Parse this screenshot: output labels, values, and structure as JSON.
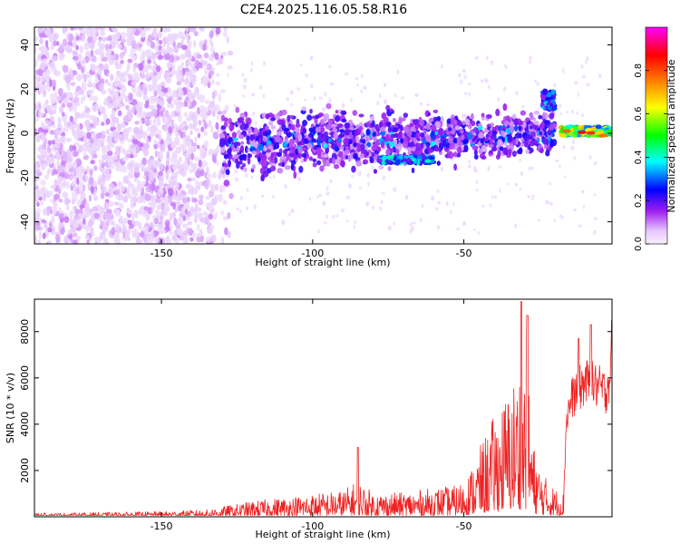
{
  "title": "C2E4.2025.116.05.58.R16",
  "chart_data": [
    {
      "type": "heatmap",
      "xlabel": "Height of straight line (km)",
      "ylabel": "Frequency (Hz)",
      "xlim": [
        -192,
        -1
      ],
      "ylim": [
        -50,
        48
      ],
      "x_ticks": [
        "-150",
        "-100",
        "-50"
      ],
      "y_ticks": [
        "-40",
        "-20",
        "0",
        "20",
        "40"
      ],
      "colorbar": {
        "label": "Normalized spectral amplitude",
        "range": [
          0,
          1
        ],
        "ticks": [
          "0.0",
          "0.2",
          "0.4",
          "0.6",
          "0.8"
        ],
        "colors": [
          "#f4ecf8",
          "#e6c8ff",
          "#a020f0",
          "#0000ff",
          "#00ffff",
          "#00ff00",
          "#ffff00",
          "#ff8000",
          "#ff0000",
          "#ff00ff"
        ]
      },
      "features": [
        {
          "x_range": [
            -192,
            -130
          ],
          "freq_range": [
            -50,
            48
          ],
          "amplitude": 0.15,
          "description_free": true
        },
        {
          "x_range": [
            -130,
            -20
          ],
          "freq_center_start": -5,
          "freq_center_end": 0,
          "amplitude": 0.35
        },
        {
          "x_range": [
            -78,
            -60
          ],
          "freq_center": -12,
          "amplitude": 0.5
        },
        {
          "x_range": [
            -24,
            -20
          ],
          "freq_center": 15,
          "amplitude": 0.4
        },
        {
          "x_range": [
            -18,
            -1
          ],
          "freq_center": 0,
          "amplitude": 0.85
        }
      ]
    },
    {
      "type": "line",
      "xlabel": "Height of straight line (km)",
      "ylabel": "SNR (10 * v/v)",
      "xlim": [
        -192,
        -1
      ],
      "ylim": [
        0,
        9400
      ],
      "x_ticks": [
        "-150",
        "-100",
        "-50"
      ],
      "y_ticks": [
        "2000",
        "4000",
        "6000",
        "8000"
      ],
      "series_color": "#ee2222",
      "envelope": [
        {
          "x": -192,
          "y": 150
        },
        {
          "x": -170,
          "y": 180
        },
        {
          "x": -150,
          "y": 220
        },
        {
          "x": -135,
          "y": 300
        },
        {
          "x": -120,
          "y": 650
        },
        {
          "x": -110,
          "y": 800
        },
        {
          "x": -100,
          "y": 950
        },
        {
          "x": -90,
          "y": 1100
        },
        {
          "x": -85,
          "y": 1500
        },
        {
          "x": -80,
          "y": 1000
        },
        {
          "x": -70,
          "y": 1000
        },
        {
          "x": -60,
          "y": 1200
        },
        {
          "x": -52,
          "y": 1300
        },
        {
          "x": -48,
          "y": 1900
        },
        {
          "x": -45,
          "y": 2800
        },
        {
          "x": -40,
          "y": 4200
        },
        {
          "x": -35,
          "y": 5300
        },
        {
          "x": -31,
          "y": 6500
        },
        {
          "x": -29,
          "y": 6800
        },
        {
          "x": -27,
          "y": 3000
        },
        {
          "x": -24,
          "y": 1800
        },
        {
          "x": -20,
          "y": 1200
        },
        {
          "x": -17,
          "y": 1000
        },
        {
          "x": -16,
          "y": 4300
        },
        {
          "x": -14,
          "y": 5200
        },
        {
          "x": -10,
          "y": 5800
        },
        {
          "x": -7,
          "y": 5700
        },
        {
          "x": -3,
          "y": 5400
        },
        {
          "x": -1,
          "y": 6500
        }
      ],
      "peaks": [
        {
          "x": -31,
          "y": 9300
        },
        {
          "x": -29,
          "y": 8700
        },
        {
          "x": -85,
          "y": 3000
        },
        {
          "x": -12,
          "y": 7700
        },
        {
          "x": -8,
          "y": 8300
        },
        {
          "x": -1,
          "y": 8500
        }
      ]
    }
  ]
}
